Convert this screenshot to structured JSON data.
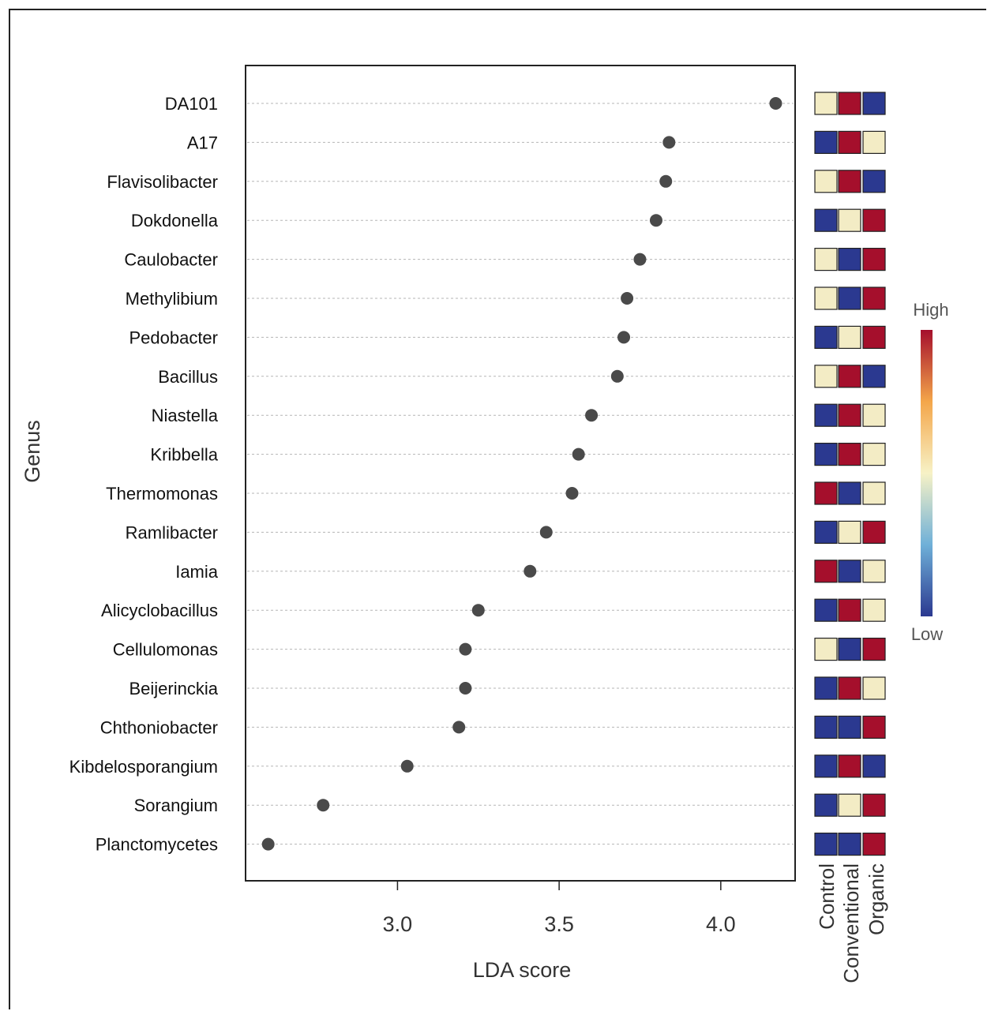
{
  "chart_data": {
    "type": "scatter",
    "xlabel": "LDA score",
    "ylabel": "Genus",
    "xlim": [
      2.53,
      4.23
    ],
    "xticks": [
      "3.0",
      "3.5",
      "4.0"
    ],
    "grid": "horizontal dotted",
    "categories": [
      "DA101",
      "A17",
      "Flavisolibacter",
      "Dokdonella",
      "Caulobacter",
      "Methylibium",
      "Pedobacter",
      "Bacillus",
      "Niastella",
      "Kribbella",
      "Thermomonas",
      "Ramlibacter",
      "Iamia",
      "Alicyclobacillus",
      "Cellulomonas",
      "Beijerinckia",
      "Chthoniobacter",
      "Kibdelosporangium",
      "Sorangium",
      "Planctomycetes"
    ],
    "values": [
      4.17,
      3.84,
      3.83,
      3.8,
      3.75,
      3.71,
      3.7,
      3.68,
      3.6,
      3.56,
      3.54,
      3.46,
      3.41,
      3.25,
      3.21,
      3.21,
      3.19,
      3.03,
      2.77,
      2.6
    ],
    "heatmap": {
      "groups": [
        "Control",
        "Conventional",
        "Organic"
      ],
      "levels": [
        [
          "mid",
          "high",
          "low"
        ],
        [
          "low",
          "high",
          "mid"
        ],
        [
          "mid",
          "high",
          "low"
        ],
        [
          "low",
          "mid",
          "high"
        ],
        [
          "mid",
          "low",
          "high"
        ],
        [
          "mid",
          "low",
          "high"
        ],
        [
          "low",
          "mid",
          "high"
        ],
        [
          "mid",
          "high",
          "low"
        ],
        [
          "low",
          "high",
          "mid"
        ],
        [
          "low",
          "high",
          "mid"
        ],
        [
          "high",
          "low",
          "mid"
        ],
        [
          "low",
          "mid",
          "high"
        ],
        [
          "high",
          "low",
          "mid"
        ],
        [
          "low",
          "high",
          "mid"
        ],
        [
          "mid",
          "low",
          "high"
        ],
        [
          "low",
          "high",
          "mid"
        ],
        [
          "low",
          "low",
          "high"
        ],
        [
          "low",
          "high",
          "low"
        ],
        [
          "low",
          "mid",
          "high"
        ],
        [
          "low",
          "low",
          "high"
        ]
      ],
      "colors": {
        "low": "#2b3990",
        "mid": "#f3ecc5",
        "high": "#a50f2c"
      },
      "legend": {
        "high_label": "High",
        "low_label": "Low"
      }
    },
    "point_color": "#4a4a4a"
  }
}
